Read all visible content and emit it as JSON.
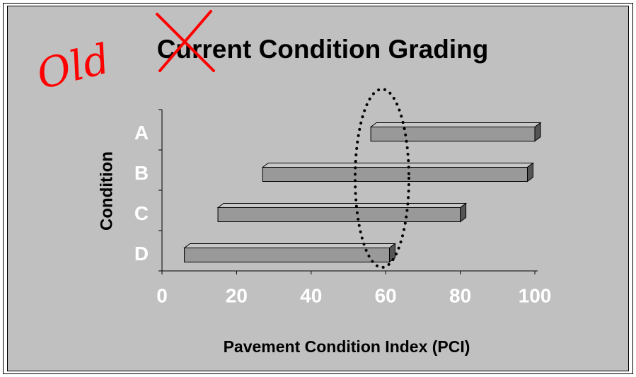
{
  "chart_data": {
    "type": "floating-bar",
    "title": "Current Condition Grading",
    "annotation": "Old",
    "xlabel": "Pavement Condition Index (PCI)",
    "ylabel": "Condition",
    "categories": [
      "A",
      "B",
      "C",
      "D"
    ],
    "values": [
      [
        56,
        100
      ],
      [
        27,
        98
      ],
      [
        15,
        80
      ],
      [
        6,
        61
      ]
    ],
    "color": "#999999",
    "xlim": [
      0,
      100
    ],
    "xticks": [
      0,
      20,
      40,
      60,
      80,
      100
    ]
  }
}
